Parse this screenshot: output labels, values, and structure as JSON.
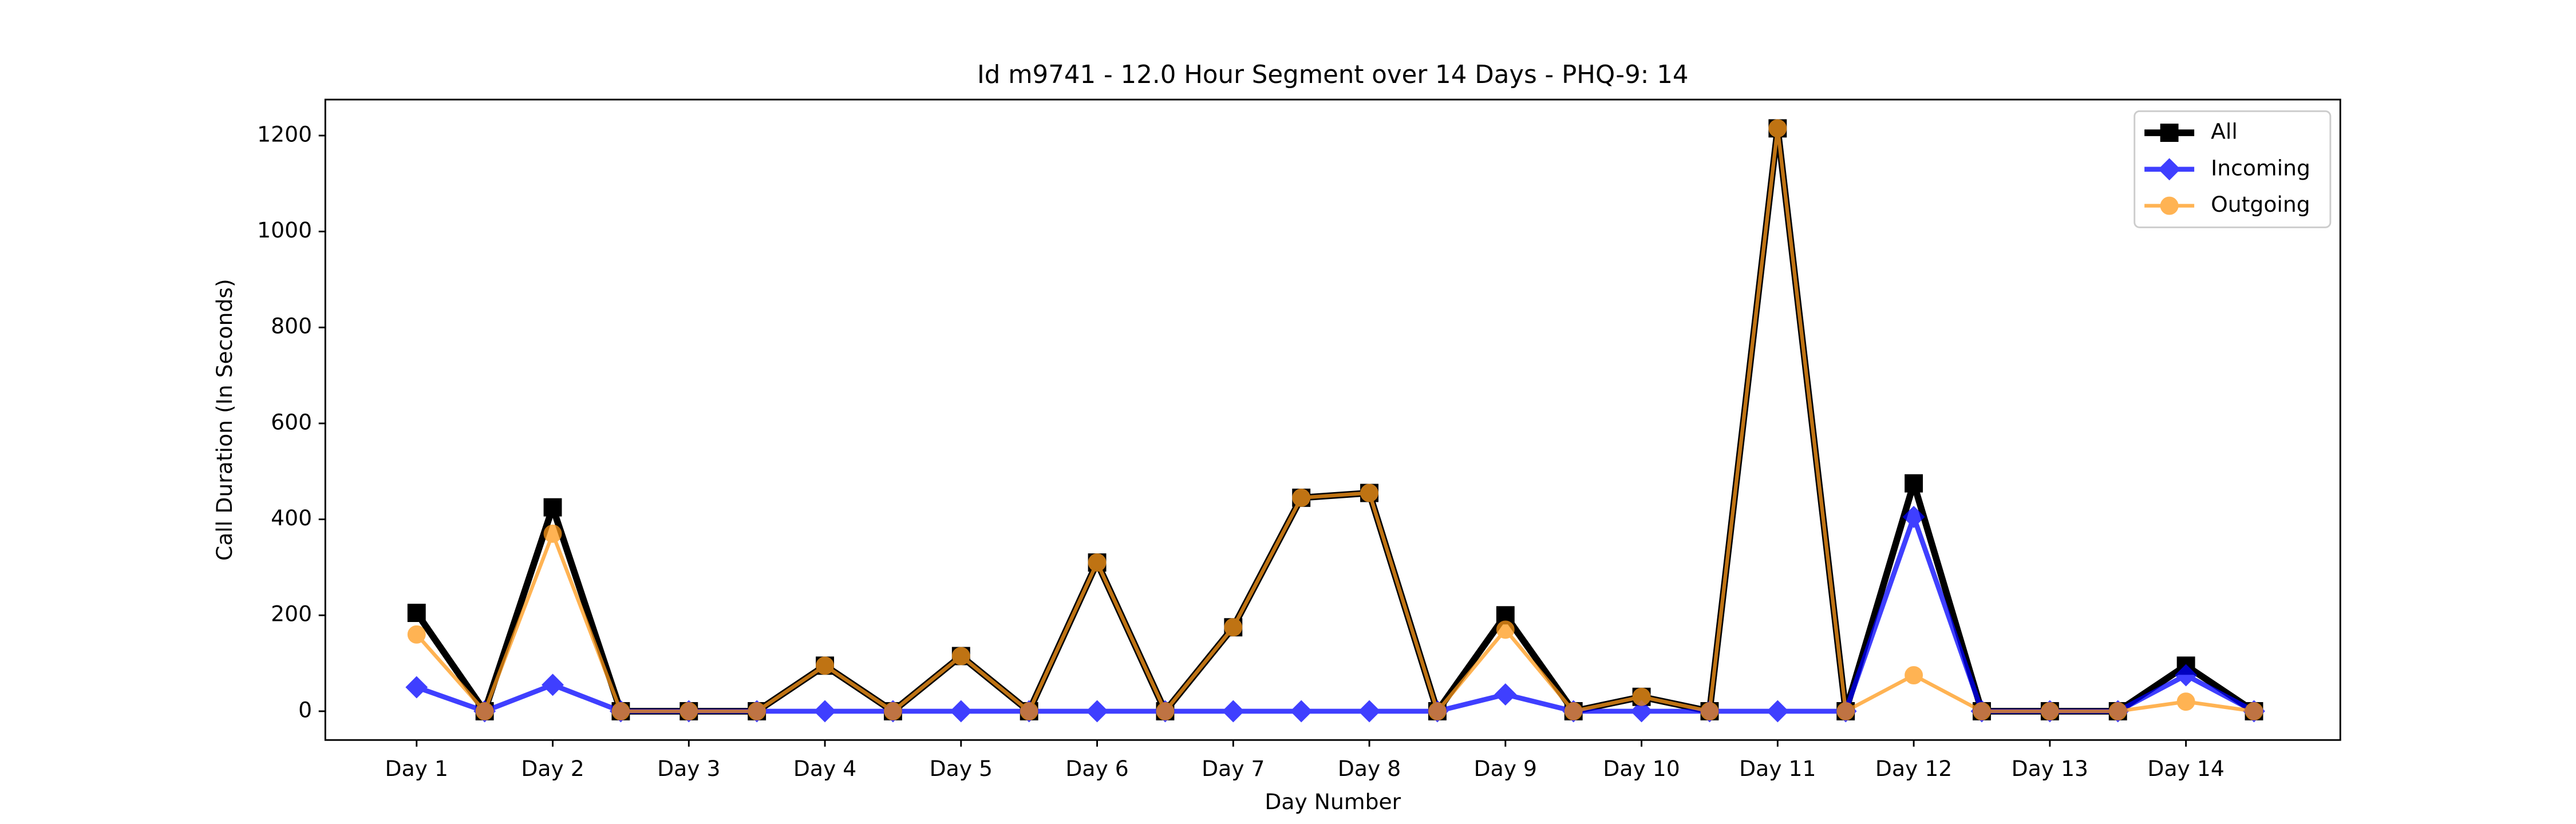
{
  "chart_data": {
    "type": "line",
    "title": "Id m9741 - 12.0 Hour Segment over 14 Days - PHQ-9: 14",
    "x_label": "Day Number",
    "y_label": "Call Duration (In Seconds)",
    "categories": [
      "Day 1",
      null,
      "Day 2",
      null,
      "Day 3",
      null,
      "Day 4",
      null,
      "Day 5",
      null,
      "Day 6",
      null,
      "Day 7",
      null,
      "Day 8",
      null,
      "Day 9",
      null,
      "Day 10",
      null,
      "Day 11",
      null,
      "Day 12",
      null,
      "Day 13",
      null,
      "Day 14",
      null
    ],
    "series": [
      {
        "name": "All",
        "color": "#000000",
        "marker": "square",
        "values": [
          205,
          0,
          425,
          0,
          0,
          0,
          95,
          0,
          115,
          0,
          310,
          0,
          175,
          445,
          455,
          0,
          200,
          0,
          30,
          0,
          1215,
          0,
          475,
          0,
          0,
          0,
          95,
          0
        ]
      },
      {
        "name": "Incoming",
        "color": "#0000ff",
        "marker": "diamond",
        "values": [
          50,
          0,
          55,
          0,
          0,
          0,
          0,
          0,
          0,
          0,
          0,
          0,
          0,
          0,
          0,
          0,
          35,
          0,
          0,
          0,
          0,
          0,
          405,
          0,
          0,
          0,
          75,
          0
        ]
      },
      {
        "name": "Outgoing",
        "color": "#ff9a1a",
        "marker": "circle",
        "values": [
          160,
          0,
          370,
          0,
          0,
          0,
          95,
          0,
          115,
          0,
          310,
          0,
          175,
          445,
          455,
          0,
          170,
          0,
          30,
          0,
          1215,
          0,
          75,
          0,
          0,
          0,
          20,
          0
        ]
      }
    ],
    "ylim": [
      -60,
      1275
    ],
    "yticks": [
      0,
      200,
      400,
      600,
      800,
      1000,
      1200
    ],
    "legend": "upper right",
    "grid": false
  }
}
